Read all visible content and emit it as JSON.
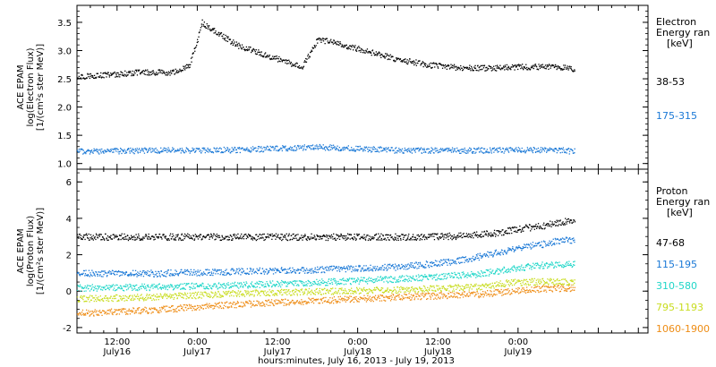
{
  "chart_data": [
    {
      "type": "scatter",
      "panel": "electron",
      "ylabel_lines": [
        "ACE EPAM",
        "log(Electron Flux)",
        "[1/(cm²s ster MeV)]"
      ],
      "ylim": [
        0.9,
        3.8
      ],
      "yticks": [
        1.0,
        1.5,
        2.0,
        2.5,
        3.0,
        3.5
      ],
      "ytick_labels": [
        "1.0",
        "1.5",
        "2.0",
        "2.5",
        "3.0",
        "3.5"
      ],
      "legend_title_lines": [
        "Electron",
        "Energy ran",
        "[keV]"
      ],
      "series": [
        {
          "name": "38-53",
          "color": "#000000",
          "x": [
            0.0,
            0.2,
            0.4,
            0.6,
            0.7,
            0.75,
            0.78,
            0.8,
            1.0,
            1.2,
            1.4,
            1.45,
            1.5,
            1.6,
            1.8,
            2.0,
            2.2,
            2.4,
            2.6,
            2.8,
            3.0,
            3.1
          ],
          "y": [
            2.55,
            2.58,
            2.62,
            2.62,
            2.75,
            3.2,
            3.52,
            3.45,
            3.1,
            2.9,
            2.72,
            2.95,
            3.2,
            3.15,
            3.0,
            2.85,
            2.75,
            2.7,
            2.7,
            2.72,
            2.72,
            2.68
          ]
        },
        {
          "name": "175-315",
          "color": "#1a78d6",
          "x": [
            0.0,
            0.5,
            1.0,
            1.5,
            2.0,
            2.5,
            3.0,
            3.1
          ],
          "y": [
            1.22,
            1.24,
            1.25,
            1.3,
            1.24,
            1.24,
            1.25,
            1.22
          ]
        }
      ]
    },
    {
      "type": "scatter",
      "panel": "proton",
      "ylabel_lines": [
        "ACE EPAM",
        "log(Proton Flux)",
        "[1/(cm²s ster MeV)]"
      ],
      "ylim": [
        -2.3,
        6.7
      ],
      "yticks": [
        -2,
        0,
        2,
        4,
        6
      ],
      "ytick_labels": [
        "-2",
        "0",
        "2",
        "4",
        "6"
      ],
      "legend_title_lines": [
        "Proton",
        "Energy ran",
        "[keV]"
      ],
      "series": [
        {
          "name": "47-68",
          "color": "#000000",
          "x": [
            0.0,
            0.5,
            1.0,
            1.5,
            2.0,
            2.4,
            2.6,
            2.8,
            2.9,
            3.0,
            3.1
          ],
          "y": [
            3.0,
            3.0,
            3.0,
            3.0,
            3.0,
            3.05,
            3.2,
            3.5,
            3.6,
            3.8,
            3.9
          ]
        },
        {
          "name": "115-195",
          "color": "#1a78d6",
          "x": [
            0.0,
            0.5,
            1.0,
            1.5,
            2.0,
            2.3,
            2.5,
            2.7,
            2.8,
            2.9,
            3.0,
            3.1
          ],
          "y": [
            1.0,
            1.0,
            1.1,
            1.2,
            1.35,
            1.6,
            1.9,
            2.3,
            2.5,
            2.6,
            2.8,
            2.85
          ]
        },
        {
          "name": "310-580",
          "color": "#1fd6c8",
          "x": [
            0.0,
            0.5,
            1.0,
            1.5,
            2.0,
            2.5,
            2.7,
            2.9,
            3.1
          ],
          "y": [
            0.2,
            0.25,
            0.35,
            0.5,
            0.7,
            0.95,
            1.25,
            1.45,
            1.5
          ]
        },
        {
          "name": "795-1193",
          "color": "#c8dc1e",
          "x": [
            0.0,
            0.5,
            1.0,
            1.5,
            2.0,
            2.5,
            2.7,
            2.9,
            3.1
          ],
          "y": [
            -0.4,
            -0.3,
            -0.1,
            0.0,
            0.1,
            0.25,
            0.5,
            0.55,
            0.55
          ]
        },
        {
          "name": "1060-1900",
          "color": "#ee8c14",
          "x": [
            0.0,
            0.5,
            1.0,
            1.5,
            2.0,
            2.5,
            2.7,
            2.9,
            3.1
          ],
          "y": [
            -1.2,
            -1.0,
            -0.7,
            -0.5,
            -0.3,
            -0.15,
            0.0,
            0.15,
            0.2
          ]
        }
      ]
    }
  ],
  "x_axis": {
    "tick_labels": [
      {
        "x": 0.25,
        "time": "12:00",
        "date": "July16"
      },
      {
        "x": 0.75,
        "time": "0:00",
        "date": "July17"
      },
      {
        "x": 1.25,
        "time": "12:00",
        "date": "July17"
      },
      {
        "x": 1.75,
        "time": "0:00",
        "date": "July18"
      },
      {
        "x": 2.25,
        "time": "12:00",
        "date": "July18"
      },
      {
        "x": 2.75,
        "time": "0:00",
        "date": "July19"
      }
    ],
    "xlim": [
      0.0,
      3.56
    ],
    "label": "hours:minutes, July 16, 2013 - July 19, 2013"
  }
}
